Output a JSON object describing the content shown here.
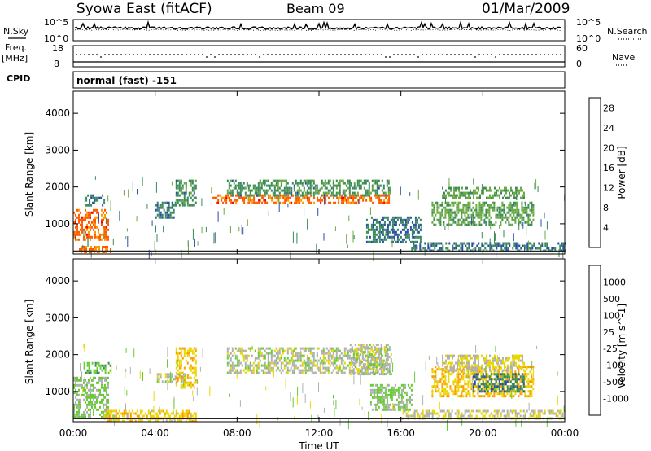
{
  "header": {
    "station": "Syowa East (fitACF)",
    "beam": "Beam 09",
    "date": "01/Mar/2009"
  },
  "left_labels": {
    "nsky": "N.Sky",
    "freq": "Freq.",
    "freq_unit": "[MHz]",
    "cpid": "CPID"
  },
  "right_labels": {
    "nsearch": "N.Search",
    "nave": "Nave"
  },
  "cpid_text": "normal (fast) -151",
  "noise_ticks_left": [
    "10^5",
    "10^0"
  ],
  "noise_ticks_right": [
    "10^5",
    "10^0"
  ],
  "freq_ticks_left": [
    "18",
    "8"
  ],
  "nave_ticks_right": [
    "60",
    "0"
  ],
  "x_axis": {
    "label": "Time UT",
    "ticks": [
      "00:00",
      "04:00",
      "08:00",
      "12:00",
      "16:00",
      "20:00",
      "00:00"
    ]
  },
  "colors": {
    "power_scale": [
      "#0000ff",
      "#2a4ea8",
      "#3a8a5a",
      "#6aaa44",
      "#e8d800",
      "#ff9a00",
      "#ff5a00",
      "#ff0000"
    ],
    "velocity_scale": [
      "#ff0000",
      "#ff5a00",
      "#ff9a00",
      "#e8d800",
      "#b0b0b0",
      "#66cc33",
      "#3a8a5a",
      "#2a4ea8",
      "#0000ff"
    ]
  },
  "chart_data": [
    {
      "type": "heatmap",
      "title": "",
      "ylabel": "Slant Range [km]",
      "xlabel": "",
      "x_range_hours": [
        0,
        24
      ],
      "ylim": [
        180,
        4600
      ],
      "yticks": [
        "1000",
        "2000",
        "3000",
        "4000"
      ],
      "colorbar": {
        "label": "Power [dB]",
        "ticks": [
          "4",
          "8",
          "12",
          "16",
          "20",
          "24",
          "28"
        ],
        "range": [
          0,
          30
        ]
      },
      "regions": [
        {
          "t0": 0.0,
          "t1": 1.7,
          "r0": 600,
          "r1": 1400,
          "value": 24
        },
        {
          "t0": 0.2,
          "t1": 1.8,
          "r0": 250,
          "r1": 400,
          "value": 22
        },
        {
          "t0": 0.6,
          "t1": 1.5,
          "r0": 1500,
          "r1": 1800,
          "value": 8
        },
        {
          "t0": 4.0,
          "t1": 5.0,
          "r0": 1200,
          "r1": 1600,
          "value": 8
        },
        {
          "t0": 5.0,
          "t1": 6.0,
          "r0": 1500,
          "r1": 2200,
          "value": 10
        },
        {
          "t0": 6.8,
          "t1": 15.5,
          "r0": 1600,
          "r1": 1800,
          "value": 24
        },
        {
          "t0": 7.5,
          "t1": 15.5,
          "r0": 1800,
          "r1": 2200,
          "value": 10
        },
        {
          "t0": 14.3,
          "t1": 17.0,
          "r0": 500,
          "r1": 1200,
          "value": 8
        },
        {
          "t0": 17.5,
          "t1": 22.5,
          "r0": 1000,
          "r1": 1600,
          "value": 12
        },
        {
          "t0": 18.0,
          "t1": 22.0,
          "r0": 1700,
          "r1": 2000,
          "value": 12
        },
        {
          "t0": 16.5,
          "t1": 24.0,
          "r0": 250,
          "r1": 500,
          "value": 8
        }
      ]
    },
    {
      "type": "heatmap",
      "title": "",
      "ylabel": "Slant Range [km]",
      "xlabel": "Time UT",
      "x_range_hours": [
        0,
        24
      ],
      "ylim": [
        180,
        4600
      ],
      "yticks": [
        "1000",
        "2000",
        "3000",
        "4000"
      ],
      "colorbar": {
        "label": "Velocity [m s^-1]",
        "ticks": [
          "1000",
          "500",
          "100",
          "25",
          "-25",
          "-100",
          "-500",
          "-1000"
        ],
        "range": [
          -1000,
          1000
        ]
      },
      "regions": [
        {
          "t0": 0.0,
          "t1": 1.7,
          "r0": 300,
          "r1": 1400,
          "value": 150
        },
        {
          "t0": 0.5,
          "t1": 1.8,
          "r0": 1500,
          "r1": 1800,
          "value": 300
        },
        {
          "t0": 1.5,
          "t1": 6.0,
          "r0": 200,
          "r1": 500,
          "value": -250
        },
        {
          "t0": 4.0,
          "t1": 5.5,
          "r0": 1300,
          "r1": 1500,
          "value": 0
        },
        {
          "t0": 5.0,
          "t1": 6.0,
          "r0": 1100,
          "r1": 2200,
          "value": -300
        },
        {
          "t0": 7.5,
          "t1": 15.3,
          "r0": 1500,
          "r1": 2200,
          "value": 0
        },
        {
          "t0": 13.5,
          "t1": 15.5,
          "r0": 1500,
          "r1": 2300,
          "value": 0
        },
        {
          "t0": 14.5,
          "t1": 16.5,
          "r0": 500,
          "r1": 1200,
          "value": 150
        },
        {
          "t0": 17.5,
          "t1": 22.5,
          "r0": 900,
          "r1": 1700,
          "value": -300
        },
        {
          "t0": 19.5,
          "t1": 22.0,
          "r0": 1000,
          "r1": 1500,
          "value": 500
        },
        {
          "t0": 18.0,
          "t1": 22.0,
          "r0": 1600,
          "r1": 2000,
          "value": -100
        },
        {
          "t0": 16.0,
          "t1": 24.0,
          "r0": 250,
          "r1": 500,
          "value": -100
        }
      ]
    }
  ]
}
